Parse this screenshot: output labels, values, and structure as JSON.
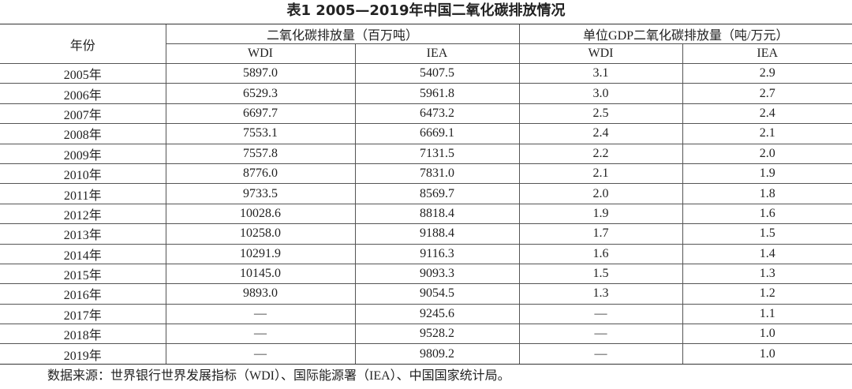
{
  "header": {
    "title": "表1 2005—2019年中国二氧化碳排放情况"
  },
  "table": {
    "year_header": "年份",
    "group_headers": [
      "二氧化碳排放量（百万吨）",
      "单位GDP二氧化碳排放量（吨/万元）"
    ],
    "sub_headers": [
      "WDI",
      "IEA",
      "WDI",
      "IEA"
    ],
    "rows": [
      [
        "2005年",
        "5897.0",
        "5407.5",
        "3.1",
        "2.9"
      ],
      [
        "2006年",
        "6529.3",
        "5961.8",
        "3.0",
        "2.7"
      ],
      [
        "2007年",
        "6697.7",
        "6473.2",
        "2.5",
        "2.4"
      ],
      [
        "2008年",
        "7553.1",
        "6669.1",
        "2.4",
        "2.1"
      ],
      [
        "2009年",
        "7557.8",
        "7131.5",
        "2.2",
        "2.0"
      ],
      [
        "2010年",
        "8776.0",
        "7831.0",
        "2.1",
        "1.9"
      ],
      [
        "2011年",
        "9733.5",
        "8569.7",
        "2.0",
        "1.8"
      ],
      [
        "2012年",
        "10028.6",
        "8818.4",
        "1.9",
        "1.6"
      ],
      [
        "2013年",
        "10258.0",
        "9188.4",
        "1.7",
        "1.5"
      ],
      [
        "2014年",
        "10291.9",
        "9116.3",
        "1.6",
        "1.4"
      ],
      [
        "2015年",
        "10145.0",
        "9093.3",
        "1.5",
        "1.3"
      ],
      [
        "2016年",
        "9893.0",
        "9054.5",
        "1.3",
        "1.2"
      ],
      [
        "2017年",
        "—",
        "9245.6",
        "—",
        "1.1"
      ],
      [
        "2018年",
        "—",
        "9528.2",
        "—",
        "1.0"
      ],
      [
        "2019年",
        "—",
        "9809.2",
        "—",
        "1.0"
      ]
    ]
  },
  "footer": {
    "note": "数据来源：世界银行世界发展指标（WDI）、国际能源署（IEA）、中国国家统计局。"
  }
}
